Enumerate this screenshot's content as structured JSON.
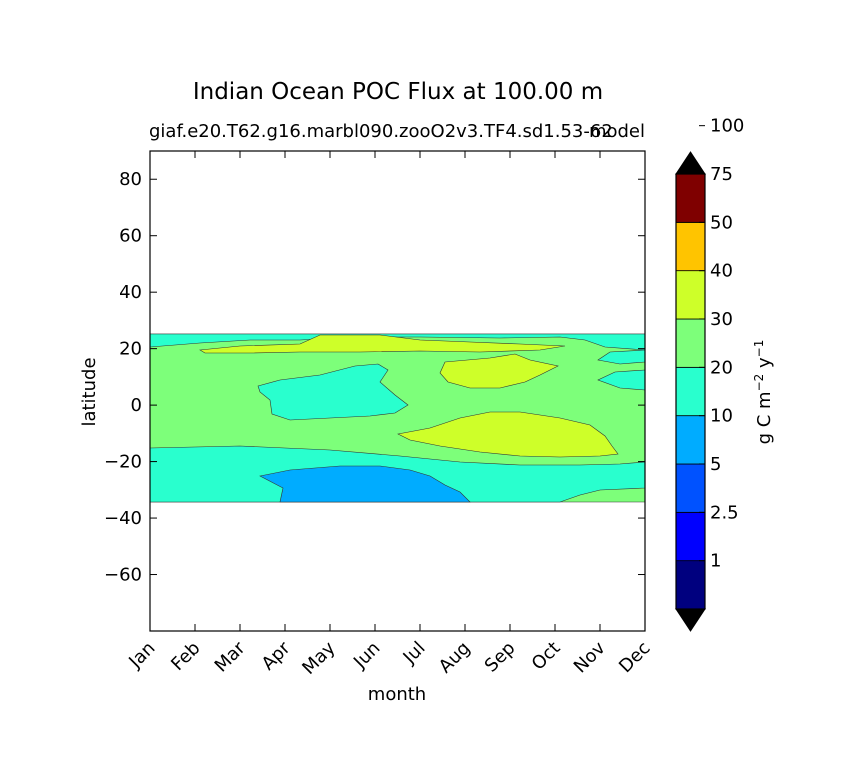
{
  "chart_data": {
    "type": "heatmap",
    "plot_kind": "filled-contour",
    "title": "Indian Ocean POC Flux at 100.00 m",
    "subtitle_left": "giaf.e20.T62.g16.marbl090.zooO2v3.TF4.sd1.53-62",
    "subtitle_right": "model",
    "xlabel": "month",
    "ylabel": "latitude",
    "x_ticks": [
      "Jan",
      "Feb",
      "Mar",
      "Apr",
      "May",
      "Jun",
      "Jul",
      "Aug",
      "Sep",
      "Oct",
      "Nov",
      "Dec"
    ],
    "xlim": [
      0,
      11
    ],
    "y_ticks": [
      80,
      60,
      40,
      20,
      0,
      -20,
      -40,
      -60
    ],
    "ylim": [
      -80,
      90
    ],
    "data_lat_range": [
      -34,
      25.5
    ],
    "colorbar": {
      "label": "g C m-2 y-1",
      "label_main": "g C m",
      "label_exp1": "−2",
      "label_mid": " y",
      "label_exp2": "−1",
      "levels": [
        1,
        2.5,
        5,
        10,
        20,
        30,
        40,
        50,
        75,
        100
      ],
      "colors": [
        "#00007f",
        "#0000ff",
        "#0052ff",
        "#00acff",
        "#29ffce",
        "#7dff7a",
        "#ceff29",
        "#ffc400",
        "#ff6800",
        "#f10800",
        "#7f0000"
      ],
      "extend": "both"
    },
    "regions": [
      {
        "band": "10-20",
        "color": "#29ffce",
        "label": "background band north edge 20-25N"
      },
      {
        "band": "20-30",
        "color": "#7dff7a",
        "label": "main band 25N to -20S"
      },
      {
        "band": "30-40",
        "color": "#ceff29",
        "label": "maxima near 20N and -5 to -17S Aug-Nov"
      },
      {
        "band": "10-20",
        "color": "#29ffce",
        "label": "Apr-Jul 0-15N and southern band -20 to -34S"
      },
      {
        "band": "5-10",
        "color": "#00acff",
        "label": "Apr-Aug -21 to -34S"
      }
    ]
  }
}
